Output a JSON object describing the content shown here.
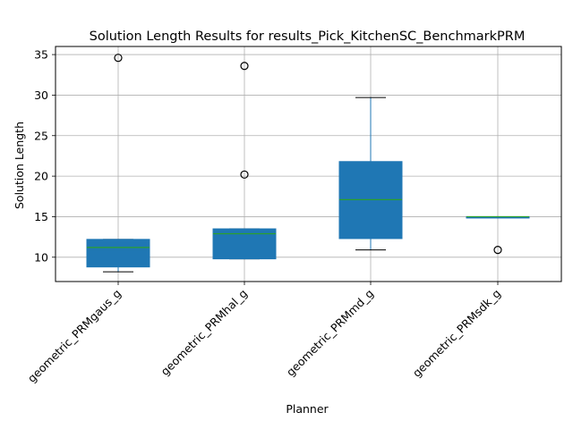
{
  "chart_data": {
    "type": "box",
    "title": "Solution Length Results for results_Pick_KitchenSC_BenchmarkPRM",
    "xlabel": "Planner",
    "ylabel": "Solution Length",
    "ylim": [
      7,
      36
    ],
    "yticks": [
      10,
      15,
      20,
      25,
      30,
      35
    ],
    "grid": true,
    "colors": {
      "box": "#1f77b4",
      "median": "#2ca02c",
      "whisker": "#000000",
      "grid": "#b0b0b0"
    },
    "categories": [
      "geometric_PRMgaus_g",
      "geometric_PRMhal_g",
      "geometric_PRMmd_g",
      "geometric_PRMsdk_g"
    ],
    "boxes": [
      {
        "whislo": 8.2,
        "q1": 8.8,
        "med": 11.2,
        "q3": 12.2,
        "whishi": 12.2,
        "fliers": [
          34.6
        ]
      },
      {
        "whislo": 9.8,
        "q1": 9.8,
        "med": 12.9,
        "q3": 13.5,
        "whishi": 13.5,
        "fliers": [
          20.2,
          33.6
        ]
      },
      {
        "whislo": 10.9,
        "q1": 12.3,
        "med": 17.1,
        "q3": 21.8,
        "whishi": 29.7,
        "fliers": []
      },
      {
        "whislo": 14.9,
        "q1": 14.9,
        "med": 15.0,
        "q3": 15.0,
        "whishi": 15.0,
        "fliers": [
          10.9
        ]
      }
    ]
  }
}
